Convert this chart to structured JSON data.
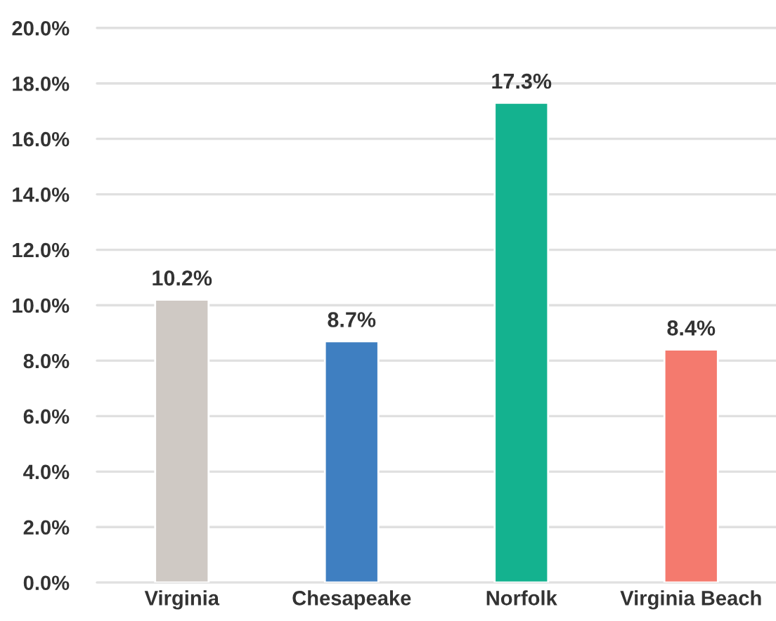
{
  "chart_data": {
    "type": "bar",
    "categories": [
      "Virginia",
      "Chesapeake",
      "Norfolk",
      "Virginia Beach"
    ],
    "values": [
      10.2,
      8.7,
      17.3,
      8.4
    ],
    "colors": [
      "#cfc9c4",
      "#3f7fc1",
      "#14b28f",
      "#f47a6e"
    ],
    "value_labels": [
      "10.2%",
      "8.7%",
      "17.3%",
      "8.4%"
    ],
    "ylim": [
      0,
      20
    ],
    "yticks": [
      {
        "value": 0,
        "label": "0.0%"
      },
      {
        "value": 2,
        "label": "2.0%"
      },
      {
        "value": 4,
        "label": "4.0%"
      },
      {
        "value": 6,
        "label": "6.0%"
      },
      {
        "value": 8,
        "label": "8.0%"
      },
      {
        "value": 10,
        "label": "10.0%"
      },
      {
        "value": 12,
        "label": "12.0%"
      },
      {
        "value": 14,
        "label": "14.0%"
      },
      {
        "value": 16,
        "label": "16.0%"
      },
      {
        "value": 18,
        "label": "18.0%"
      },
      {
        "value": 20,
        "label": "20.0%"
      }
    ],
    "grid": "y",
    "legend": false
  }
}
